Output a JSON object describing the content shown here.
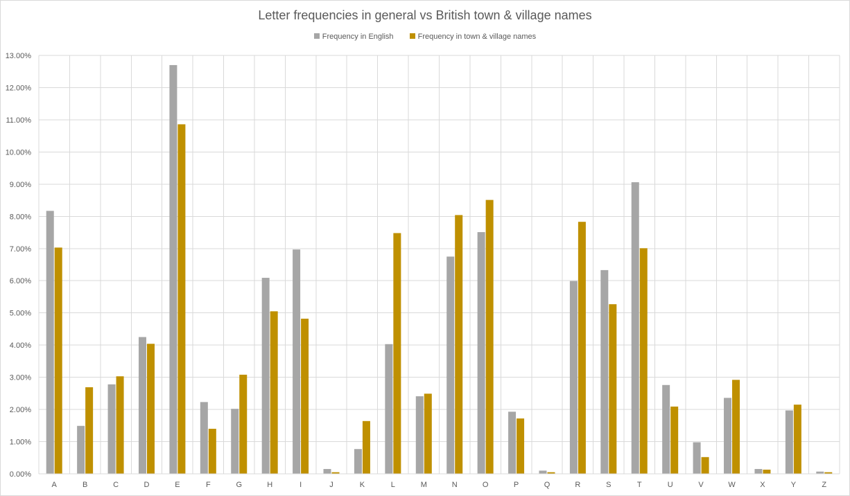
{
  "chart_data": {
    "type": "bar",
    "title": "Letter frequencies in general vs British town & village names",
    "xlabel": "",
    "ylabel": "",
    "categories": [
      "A",
      "B",
      "C",
      "D",
      "E",
      "F",
      "G",
      "H",
      "I",
      "J",
      "K",
      "L",
      "M",
      "N",
      "O",
      "P",
      "Q",
      "R",
      "S",
      "T",
      "U",
      "V",
      "W",
      "X",
      "Y",
      "Z"
    ],
    "series": [
      {
        "name": "Frequency in English",
        "color": "#a6a6a6",
        "values": [
          8.17,
          1.49,
          2.78,
          4.25,
          12.7,
          2.23,
          2.02,
          6.09,
          6.97,
          0.15,
          0.77,
          4.03,
          2.41,
          6.75,
          7.51,
          1.93,
          0.1,
          5.99,
          6.33,
          9.06,
          2.76,
          0.98,
          2.36,
          0.15,
          1.97,
          0.07
        ]
      },
      {
        "name": "Frequency in town & village names",
        "color": "#bf9000",
        "values": [
          7.03,
          2.69,
          3.03,
          4.04,
          10.86,
          1.4,
          3.08,
          5.05,
          4.82,
          0.05,
          1.64,
          7.48,
          2.49,
          8.04,
          8.51,
          1.72,
          0.05,
          7.83,
          5.27,
          7.01,
          2.09,
          0.52,
          2.92,
          0.13,
          2.15,
          0.05
        ]
      }
    ],
    "ylim": [
      0,
      13
    ],
    "ytick_step": 1,
    "y_tick_labels": [
      "0.00%",
      "1.00%",
      "2.00%",
      "3.00%",
      "4.00%",
      "5.00%",
      "6.00%",
      "7.00%",
      "8.00%",
      "9.00%",
      "10.00%",
      "11.00%",
      "12.00%",
      "13.00%"
    ],
    "grid": true,
    "legend_position": "top"
  }
}
